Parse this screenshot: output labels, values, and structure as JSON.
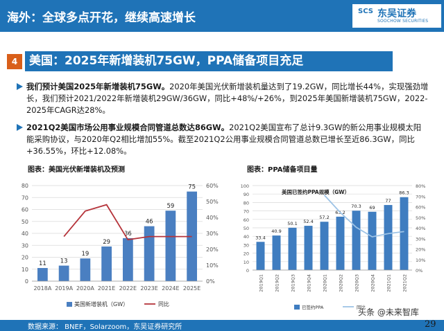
{
  "header": {
    "title": "海外：全球多点开花，继续高速增长"
  },
  "logo": {
    "mark": "SCS",
    "name": "东吴证券",
    "sub": "SOOCHOW SECURITIES",
    "color": "#1f73b7"
  },
  "section": {
    "number": "4",
    "title": "美国：2025年新增装机75GW，PPA储备项目充足"
  },
  "bullets": [
    {
      "bold": "我们预计美国2025年新增装机75GW。",
      "text": "2020年美国光伏新增装机量达到了19.2GW，同比增长44%，实现强劲增长，我们预计2021/2022年新增装机29GW/36GW，同比+48%/+26%，到2025年美国新增装机75GW，2022-2025年CAGR达28%。"
    },
    {
      "bold": "2021Q2美国市场公用事业规模合同管道总数达86GW。",
      "text": "2021Q2美国宣布了总计9.3GW的新公用事业规模太阳能采购协议，与2020年Q2相比增加55%。截至2021Q2公用事业规模合同管道总数已增长至近86.3GW，同比+36.55%，环比+12.08%。"
    }
  ],
  "chart_labels": {
    "left": "图表：美国光伏新增装机及预测",
    "right": "图表：PPA储备项目量"
  },
  "chart_data": [
    {
      "type": "bar",
      "categories": [
        "2018A",
        "2019A",
        "2020A",
        "2021E",
        "2022E",
        "2023E",
        "2024E",
        "2025E"
      ],
      "series": [
        {
          "name": "美国新增装机（GW）",
          "type": "bar",
          "axis": "left",
          "color": "#4a7fc1",
          "values": [
            11,
            13,
            19,
            29,
            36,
            46,
            59,
            75
          ]
        },
        {
          "name": "同比",
          "type": "line",
          "axis": "right",
          "color": "#b5333a",
          "values": [
            null,
            0.28,
            0.44,
            0.48,
            0.26,
            0.28,
            0.28,
            0.28
          ]
        }
      ],
      "yticks_left": [
        "0",
        "10",
        "20",
        "30",
        "40",
        "50",
        "60",
        "70",
        "80"
      ],
      "yticks_right": [
        "0%",
        "10%",
        "20%",
        "30%",
        "40%",
        "50%",
        "60%"
      ],
      "ylim_left": [
        0,
        80
      ],
      "ylim_right": [
        0,
        0.6
      ],
      "grid": true,
      "legend": "bottom"
    },
    {
      "type": "bar",
      "categories": [
        "2019Q1",
        "2019Q2",
        "2019Q3",
        "2019Q4",
        "2020Q1",
        "2020Q2",
        "2020Q3",
        "2020Q4",
        "2021Q1",
        "2021Q2"
      ],
      "series": [
        {
          "name": "已签约PPA",
          "type": "bar",
          "axis": "left",
          "color": "#3f7dc0",
          "values": [
            33.4,
            40.9,
            50.1,
            52.4,
            57.2,
            63.2,
            70.3,
            69,
            77,
            86.3
          ]
        },
        {
          "name": "同比",
          "type": "line",
          "axis": "right",
          "color": "#9dc3e6",
          "values": [
            null,
            null,
            null,
            null,
            0.71,
            0.545,
            0.405,
            0.315,
            0.345,
            0.365
          ]
        }
      ],
      "annotation": "美国已签约PPA规模（GW）",
      "yticks_left": [
        "0",
        "10",
        "20",
        "30",
        "40",
        "50",
        "60",
        "70",
        "80",
        "90",
        "100"
      ],
      "yticks_right": [
        "0%",
        "10%",
        "20%",
        "30%",
        "40%",
        "50%",
        "60%",
        "70%",
        "80%"
      ],
      "ylim_left": [
        0,
        100
      ],
      "ylim_right": [
        0,
        0.8
      ],
      "grid": true,
      "legend": "bottom"
    }
  ],
  "footer": {
    "source": "数据来源： BNEF，Solarzoom，东吴证券研究所",
    "page": "29"
  },
  "watermark": "头条 @未来智库"
}
